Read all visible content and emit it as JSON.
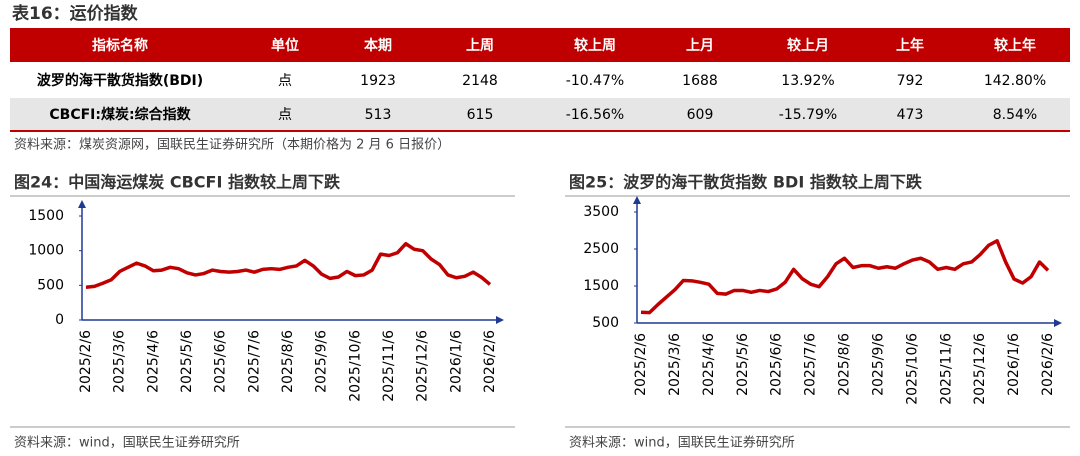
{
  "header": {
    "title": "表16：运价指数"
  },
  "table": {
    "columns": [
      "指标名称",
      "单位",
      "本期",
      "上周",
      "较上周",
      "上月",
      "较上月",
      "上年",
      "较上年"
    ],
    "rows": [
      [
        "波罗的海干散货指数(BDI)",
        "点",
        "1923",
        "2148",
        "-10.47%",
        "1688",
        "13.92%",
        "792",
        "142.80%"
      ],
      [
        "CBCFI:煤炭:综合指数",
        "点",
        "513",
        "615",
        "-16.56%",
        "609",
        "-15.79%",
        "473",
        "8.54%"
      ]
    ],
    "source": "资料来源：煤炭资源网，国联民生证券研究所（本期价格为 2 月 6 日报价）"
  },
  "chart_data": [
    {
      "type": "line",
      "title": "图24：中国海运煤炭 CBCFI 指数较上周下跌",
      "source": "资料来源：wind，国联民生证券研究所",
      "categories": [
        "2025/2/6",
        null,
        null,
        null,
        "2025/3/6",
        null,
        null,
        null,
        "2025/4/6",
        null,
        null,
        null,
        "2025/5/6",
        null,
        null,
        null,
        "2025/6/6",
        null,
        null,
        null,
        "2025/7/6",
        null,
        null,
        null,
        "2025/8/6",
        null,
        null,
        null,
        "2025/9/6",
        null,
        null,
        null,
        "2025/10/6",
        null,
        null,
        null,
        "2025/11/6",
        null,
        null,
        null,
        "2025/12/6",
        null,
        null,
        null,
        "2026/1/6",
        null,
        null,
        null,
        "2026/2/6"
      ],
      "series": [
        {
          "color": "#c00000",
          "values": [
            473,
            485,
            530,
            580,
            700,
            760,
            820,
            780,
            710,
            720,
            760,
            740,
            680,
            650,
            670,
            720,
            700,
            690,
            700,
            720,
            690,
            730,
            740,
            730,
            760,
            780,
            860,
            780,
            660,
            600,
            620,
            700,
            640,
            650,
            720,
            950,
            930,
            970,
            1100,
            1020,
            1000,
            880,
            800,
            650,
            609,
            630,
            690,
            615,
            513
          ]
        }
      ],
      "ylim": [
        0,
        1500
      ],
      "yticks": [
        0,
        500,
        1000,
        1500
      ]
    },
    {
      "type": "line",
      "title": "图25：波罗的海干散货指数 BDI 指数较上周下跌",
      "source": "资料来源：wind，国联民生证券研究所",
      "categories": [
        "2025/2/6",
        null,
        null,
        null,
        "2025/3/6",
        null,
        null,
        null,
        "2025/4/6",
        null,
        null,
        null,
        "2025/5/6",
        null,
        null,
        null,
        "2025/6/6",
        null,
        null,
        null,
        "2025/7/6",
        null,
        null,
        null,
        "2025/8/6",
        null,
        null,
        null,
        "2025/9/6",
        null,
        null,
        null,
        "2025/10/6",
        null,
        null,
        null,
        "2025/11/6",
        null,
        null,
        null,
        "2025/12/6",
        null,
        null,
        null,
        "2026/1/6",
        null,
        null,
        null,
        "2026/2/6"
      ],
      "series": [
        {
          "color": "#c00000",
          "values": [
            792,
            780,
            1000,
            1200,
            1400,
            1650,
            1640,
            1600,
            1550,
            1300,
            1280,
            1380,
            1380,
            1330,
            1380,
            1350,
            1420,
            1600,
            1950,
            1700,
            1550,
            1480,
            1750,
            2100,
            2250,
            2000,
            2050,
            2050,
            1980,
            2020,
            1980,
            2100,
            2200,
            2250,
            2150,
            1950,
            2000,
            1950,
            2100,
            2150,
            2350,
            2600,
            2720,
            2150,
            1688,
            1580,
            1750,
            2148,
            1923
          ]
        }
      ],
      "ylim": [
        500,
        3500
      ],
      "yticks": [
        500,
        1500,
        2500,
        3500
      ]
    }
  ]
}
